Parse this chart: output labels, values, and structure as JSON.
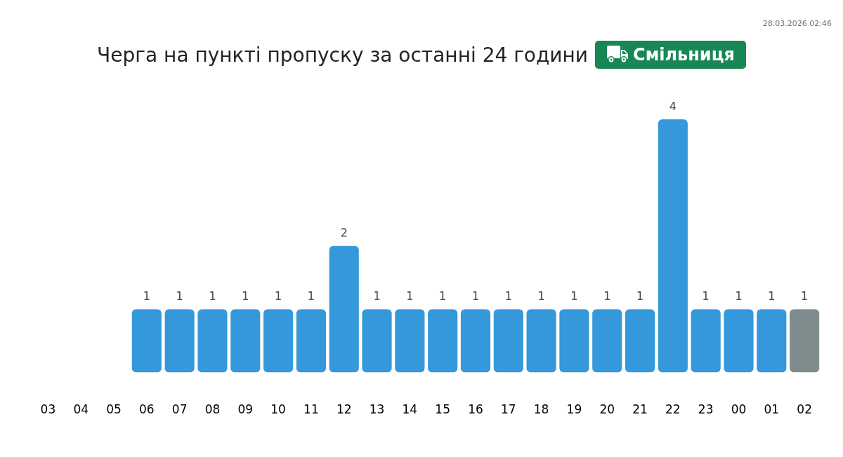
{
  "chart_data": {
    "type": "bar",
    "title": "Черга на пункті пропуску за останні 24 години",
    "subtitle": "Смільниця",
    "annotations": [
      "28.03.2026 02:46"
    ],
    "categories": [
      "03",
      "04",
      "05",
      "06",
      "07",
      "08",
      "09",
      "10",
      "11",
      "12",
      "13",
      "14",
      "15",
      "16",
      "17",
      "18",
      "19",
      "20",
      "21",
      "22",
      "23",
      "00",
      "01",
      "02"
    ],
    "values": [
      null,
      null,
      null,
      1,
      1,
      1,
      1,
      1,
      1,
      2,
      1,
      1,
      1,
      1,
      1,
      1,
      1,
      1,
      1,
      4,
      1,
      1,
      1,
      1
    ],
    "colors": [
      "#3498db",
      "#3498db",
      "#3498db",
      "#3498db",
      "#3498db",
      "#3498db",
      "#3498db",
      "#3498db",
      "#3498db",
      "#3498db",
      "#3498db",
      "#3498db",
      "#3498db",
      "#3498db",
      "#3498db",
      "#3498db",
      "#3498db",
      "#3498db",
      "#3498db",
      "#3498db",
      "#3498db",
      "#3498db",
      "#3498db",
      "#7f8c8d"
    ],
    "data_labels": true,
    "tick_labels": "x"
  }
}
